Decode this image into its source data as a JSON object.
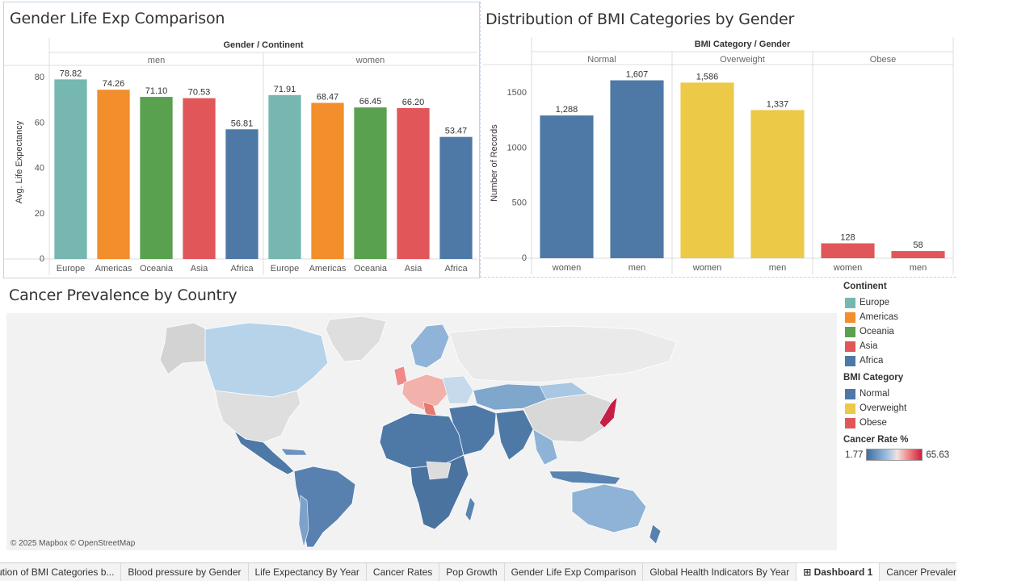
{
  "sheets": {
    "life": {
      "title": "Gender Life Exp Comparison",
      "header": "Gender / Continent",
      "groups": [
        "men",
        "women"
      ]
    },
    "bmi": {
      "title": "Distribution of BMI Categories by Gender",
      "header": "BMI Category / Gender",
      "groups": [
        "Normal",
        "Overweight",
        "Obese"
      ]
    },
    "map": {
      "title": "Cancer Prevalence by Country",
      "credit": "© 2025 Mapbox © OpenStreetMap"
    }
  },
  "chart_data": [
    {
      "type": "bar",
      "title": "Gender Life Exp Comparison",
      "ylabel": "Avg. Life Expectancy",
      "ylim": [
        0,
        85
      ],
      "yticks": [
        0,
        20,
        40,
        60,
        80
      ],
      "panels": [
        {
          "name": "men",
          "categories": [
            "Europe",
            "Americas",
            "Oceania",
            "Asia",
            "Africa"
          ],
          "values": [
            78.82,
            74.26,
            71.1,
            70.53,
            56.81
          ],
          "labels": [
            "78.82",
            "74.26",
            "71.10",
            "70.53",
            "56.81"
          ]
        },
        {
          "name": "women",
          "categories": [
            "Europe",
            "Americas",
            "Oceania",
            "Asia",
            "Africa"
          ],
          "values": [
            71.91,
            68.47,
            66.45,
            66.2,
            53.47
          ],
          "labels": [
            "71.91",
            "68.47",
            "66.45",
            "66.20",
            "53.47"
          ]
        }
      ],
      "colors": {
        "Europe": "#76b7b2",
        "Americas": "#f28e2b",
        "Oceania": "#59a14f",
        "Asia": "#e15759",
        "Africa": "#4e79a7"
      }
    },
    {
      "type": "bar",
      "title": "Distribution of BMI Categories by Gender",
      "ylabel": "Number of Records",
      "ylim": [
        0,
        1750
      ],
      "yticks": [
        0,
        500,
        1000,
        1500
      ],
      "panels": [
        {
          "name": "Normal",
          "categories": [
            "women",
            "men"
          ],
          "values": [
            1288,
            1607
          ],
          "labels": [
            "1,288",
            "1,607"
          ]
        },
        {
          "name": "Overweight",
          "categories": [
            "women",
            "men"
          ],
          "values": [
            1586,
            1337
          ],
          "labels": [
            "1,586",
            "1,337"
          ]
        },
        {
          "name": "Obese",
          "categories": [
            "women",
            "men"
          ],
          "values": [
            128,
            58
          ],
          "labels": [
            "128",
            "58"
          ]
        }
      ],
      "colors": {
        "Normal": "#4e79a7",
        "Overweight": "#edc948",
        "Obese": "#e15759"
      }
    }
  ],
  "legend": {
    "continent": {
      "title": "Continent",
      "items": [
        {
          "label": "Europe",
          "color": "#76b7b2"
        },
        {
          "label": "Americas",
          "color": "#f28e2b"
        },
        {
          "label": "Oceania",
          "color": "#59a14f"
        },
        {
          "label": "Asia",
          "color": "#e15759"
        },
        {
          "label": "Africa",
          "color": "#4e79a7"
        }
      ]
    },
    "bmi": {
      "title": "BMI Category",
      "items": [
        {
          "label": "Normal",
          "color": "#4e79a7"
        },
        {
          "label": "Overweight",
          "color": "#edc948"
        },
        {
          "label": "Obese",
          "color": "#e15759"
        }
      ]
    },
    "cancer": {
      "title": "Cancer Rate %",
      "min": "1.77",
      "max": "65.63"
    }
  },
  "tabs": [
    {
      "label": "ution of BMI Categories b..."
    },
    {
      "label": "Blood pressure by Gender"
    },
    {
      "label": "Life Expectancy By Year"
    },
    {
      "label": "Cancer Rates"
    },
    {
      "label": "Pop Growth"
    },
    {
      "label": "Gender Life Exp Comparison"
    },
    {
      "label": "Global Health Indicators By Year"
    },
    {
      "label": "Dashboard 1",
      "icon": "⊞",
      "active": true
    },
    {
      "label": "Cancer Prevalence"
    }
  ]
}
